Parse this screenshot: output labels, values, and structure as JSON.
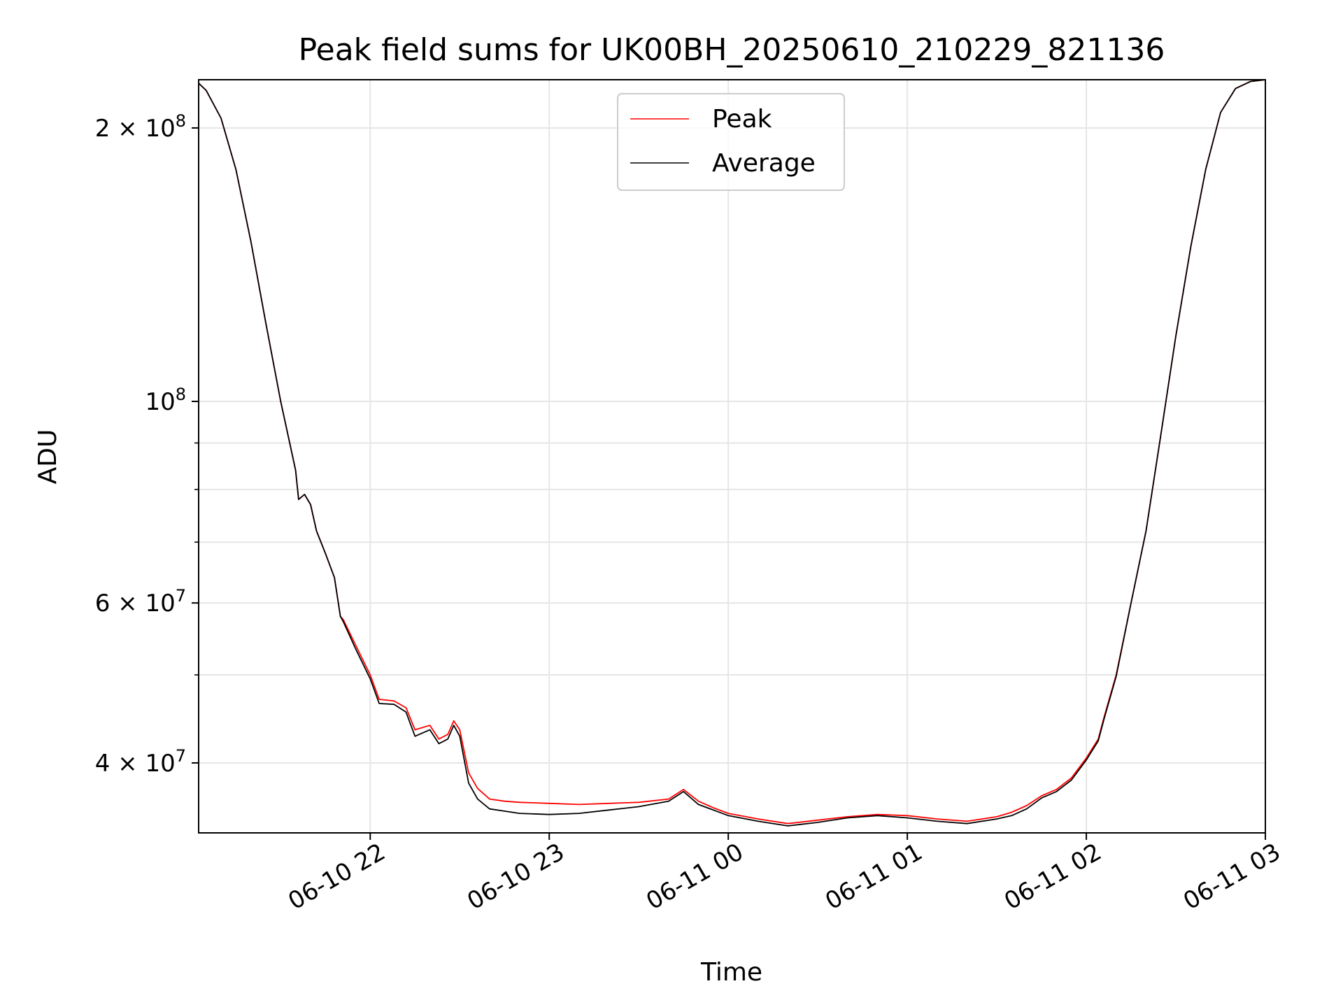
{
  "chart_data": {
    "type": "line",
    "title": "Peak field sums for UK00BH_20250610_210229_821136",
    "xlabel": "Time",
    "ylabel": "ADU",
    "yscale": "log",
    "ylim": [
      33500000,
      226000000
    ],
    "xlim": [
      "06-10 21:02:30",
      "06-11 03:00:00"
    ],
    "grid": true,
    "legend_position": "upper center",
    "x_ticks": [
      "06-10 22",
      "06-10 23",
      "06-11 00",
      "06-11 01",
      "06-11 02",
      "06-11 03"
    ],
    "y_ticks": [
      {
        "value": 200000000,
        "mantissa": "2",
        "exponent": "8"
      },
      {
        "value": 100000000,
        "mantissa": "",
        "exponent": "8"
      },
      {
        "value": 60000000,
        "mantissa": "6",
        "exponent": "7"
      },
      {
        "value": 40000000,
        "mantissa": "4",
        "exponent": "7"
      }
    ],
    "y_minor_ticks": [
      90000000,
      80000000,
      70000000,
      50000000
    ],
    "series": [
      {
        "name": "Peak",
        "color": "#ff0000",
        "x": [
          "06-10 21:02:30",
          "06-10 21:05",
          "06-10 21:10",
          "06-10 21:15",
          "06-10 21:20",
          "06-10 21:25",
          "06-10 21:30",
          "06-10 21:35",
          "06-10 21:36",
          "06-10 21:38",
          "06-10 21:40",
          "06-10 21:42",
          "06-10 21:45",
          "06-10 21:48",
          "06-10 21:50",
          "06-10 21:51",
          "06-10 21:55",
          "06-10 22:00",
          "06-10 22:03",
          "06-10 22:08",
          "06-10 22:12",
          "06-10 22:15",
          "06-10 22:20",
          "06-10 22:23",
          "06-10 22:26",
          "06-10 22:28",
          "06-10 22:30",
          "06-10 22:33",
          "06-10 22:36",
          "06-10 22:40",
          "06-10 22:45",
          "06-10 22:50",
          "06-10 23:00",
          "06-10 23:10",
          "06-10 23:20",
          "06-10 23:30",
          "06-10 23:40",
          "06-10 23:45",
          "06-10 23:50",
          "06-10 23:55",
          "06-11 00:00",
          "06-11 00:10",
          "06-11 00:20",
          "06-11 00:30",
          "06-11 00:40",
          "06-11 00:50",
          "06-11 01:00",
          "06-11 01:10",
          "06-11 01:20",
          "06-11 01:30",
          "06-11 01:35",
          "06-11 01:40",
          "06-11 01:45",
          "06-11 01:50",
          "06-11 01:55",
          "06-11 02:00",
          "06-11 02:04",
          "06-11 02:06",
          "06-11 02:10",
          "06-11 02:15",
          "06-11 02:20",
          "06-11 02:25",
          "06-11 02:30",
          "06-11 02:35",
          "06-11 02:40",
          "06-11 02:45",
          "06-11 02:50",
          "06-11 02:55",
          "06-11 03:00"
        ],
        "values": [
          224000000,
          220000000,
          205000000,
          180000000,
          150000000,
          122000000,
          100000000,
          84000000,
          78000000,
          79000000,
          77000000,
          72000000,
          68000000,
          64000000,
          58000000,
          57500000,
          54000000,
          50000000,
          47000000,
          46800000,
          46000000,
          43500000,
          44000000,
          42500000,
          43000000,
          44500000,
          43500000,
          39000000,
          37500000,
          36500000,
          36300000,
          36200000,
          36100000,
          36000000,
          36100000,
          36200000,
          36500000,
          37400000,
          36300000,
          35700000,
          35200000,
          34700000,
          34300000,
          34600000,
          34900000,
          35100000,
          35000000,
          34700000,
          34500000,
          34900000,
          35300000,
          35900000,
          36800000,
          37400000,
          38500000,
          40500000,
          42500000,
          45000000,
          50000000,
          60000000,
          72000000,
          92000000,
          118000000,
          148000000,
          180000000,
          208000000,
          221000000,
          225000000,
          226000000
        ]
      },
      {
        "name": "Average",
        "color": "#000000",
        "x": [
          "06-10 21:02:30",
          "06-10 21:05",
          "06-10 21:10",
          "06-10 21:15",
          "06-10 21:20",
          "06-10 21:25",
          "06-10 21:30",
          "06-10 21:35",
          "06-10 21:36",
          "06-10 21:38",
          "06-10 21:40",
          "06-10 21:42",
          "06-10 21:45",
          "06-10 21:48",
          "06-10 21:50",
          "06-10 21:51",
          "06-10 21:55",
          "06-10 22:00",
          "06-10 22:03",
          "06-10 22:08",
          "06-10 22:12",
          "06-10 22:15",
          "06-10 22:20",
          "06-10 22:23",
          "06-10 22:26",
          "06-10 22:28",
          "06-10 22:30",
          "06-10 22:33",
          "06-10 22:36",
          "06-10 22:40",
          "06-10 22:45",
          "06-10 22:50",
          "06-10 23:00",
          "06-10 23:10",
          "06-10 23:20",
          "06-10 23:30",
          "06-10 23:40",
          "06-10 23:45",
          "06-10 23:50",
          "06-10 23:55",
          "06-11 00:00",
          "06-11 00:10",
          "06-11 00:20",
          "06-11 00:30",
          "06-11 00:40",
          "06-11 00:50",
          "06-11 01:00",
          "06-11 01:10",
          "06-11 01:20",
          "06-11 01:30",
          "06-11 01:35",
          "06-11 01:40",
          "06-11 01:45",
          "06-11 01:50",
          "06-11 01:55",
          "06-11 02:00",
          "06-11 02:04",
          "06-11 02:06",
          "06-11 02:10",
          "06-11 02:15",
          "06-11 02:20",
          "06-11 02:25",
          "06-11 02:30",
          "06-11 02:35",
          "06-11 02:40",
          "06-11 02:45",
          "06-11 02:50",
          "06-11 02:55",
          "06-11 03:00"
        ],
        "values": [
          224000000,
          220000000,
          205000000,
          180000000,
          150000000,
          122000000,
          100000000,
          84000000,
          78000000,
          79000000,
          77000000,
          72000000,
          68000000,
          64000000,
          58000000,
          57200000,
          53500000,
          49500000,
          46500000,
          46400000,
          45500000,
          42800000,
          43500000,
          42000000,
          42500000,
          44000000,
          42800000,
          38000000,
          36500000,
          35600000,
          35400000,
          35200000,
          35100000,
          35200000,
          35500000,
          35800000,
          36300000,
          37200000,
          36000000,
          35500000,
          35000000,
          34500000,
          34100000,
          34400000,
          34800000,
          35000000,
          34800000,
          34500000,
          34300000,
          34700000,
          35000000,
          35600000,
          36600000,
          37200000,
          38300000,
          40300000,
          42300000,
          44800000,
          49800000,
          60000000,
          72000000,
          92000000,
          118000000,
          148000000,
          180000000,
          208000000,
          221000000,
          225000000,
          226000000
        ]
      }
    ]
  }
}
